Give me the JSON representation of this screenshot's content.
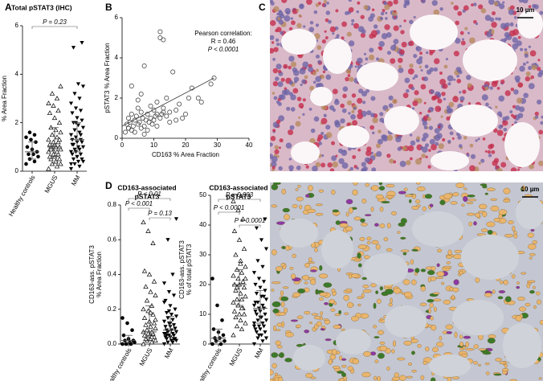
{
  "panel_labels": [
    "A",
    "B",
    "C",
    "D"
  ],
  "images": {
    "scale_bars": [
      "10 µm",
      "10 µm"
    ]
  },
  "chart_data": [
    {
      "type": "strip",
      "title": "Total pSTAT3 (IHC)",
      "ylabel": "% Area Fraction",
      "categories": [
        "Healthy controls",
        "MGUS",
        "MM"
      ],
      "ylim": [
        0,
        6
      ],
      "yticks": [
        0,
        2,
        4,
        6
      ],
      "series": [
        {
          "marker": "circle",
          "color": "#000000",
          "values": [
            0.3,
            0.4,
            0.5,
            0.6,
            0.7,
            0.7,
            0.8,
            0.9,
            1.0,
            1.2,
            1.3,
            1.4,
            1.5,
            1.6
          ],
          "median": 0.8,
          "range": [
            0.5,
            1.2
          ]
        },
        {
          "marker": "triangle-open",
          "color": "#000000",
          "values": [
            0.1,
            0.2,
            0.3,
            0.3,
            0.4,
            0.5,
            0.5,
            0.6,
            0.6,
            0.7,
            0.7,
            0.8,
            0.8,
            0.9,
            0.9,
            1.0,
            1.0,
            1.0,
            1.1,
            1.1,
            1.2,
            1.2,
            1.3,
            1.4,
            1.5,
            1.6,
            1.7,
            1.8,
            2.0,
            2.2,
            2.4,
            2.5,
            2.7,
            2.8,
            3.0,
            3.2,
            3.5,
            0.4,
            0.9,
            1.3
          ],
          "median": 1.0,
          "range": [
            0.6,
            1.8
          ]
        },
        {
          "marker": "triangle-down",
          "color": "#000000",
          "values": [
            0.1,
            0.2,
            0.3,
            0.4,
            0.4,
            0.5,
            0.5,
            0.6,
            0.7,
            0.7,
            0.8,
            0.8,
            0.9,
            0.9,
            1.0,
            1.0,
            1.1,
            1.2,
            1.2,
            1.3,
            1.3,
            1.4,
            1.5,
            1.6,
            1.7,
            1.8,
            1.9,
            2.0,
            2.1,
            2.2,
            2.4,
            2.5,
            2.6,
            2.8,
            3.0,
            3.2,
            3.5,
            3.6,
            5.1,
            5.3,
            0.6,
            1.1,
            1.5,
            2.0,
            0.3
          ],
          "median": 1.3,
          "range": [
            0.8,
            2.0
          ]
        }
      ],
      "comparisons": [
        {
          "label": "P = 0.23",
          "groups": [
            "Healthy controls",
            "MM"
          ]
        }
      ]
    },
    {
      "type": "scatter",
      "xlabel": "CD163 % Area Fraction",
      "ylabel": "pSTAT3 % Area Fraction",
      "xlim": [
        0,
        40
      ],
      "xticks": [
        0,
        10,
        20,
        30,
        40
      ],
      "ylim": [
        0,
        6
      ],
      "yticks": [
        0,
        2,
        4,
        6
      ],
      "color": "#333333",
      "x": [
        1,
        1.5,
        2,
        2,
        2.5,
        3,
        3,
        3.5,
        4,
        4,
        4.5,
        5,
        5,
        5.5,
        6,
        6,
        6.5,
        7,
        7,
        7.5,
        8,
        8,
        8.5,
        9,
        9,
        9.5,
        10,
        10,
        10.5,
        11,
        11,
        12,
        12,
        12.5,
        13,
        13,
        14,
        14,
        15,
        15,
        16,
        17,
        17,
        18,
        19,
        20,
        21,
        22,
        24,
        25,
        28,
        29,
        3,
        5,
        7,
        11,
        12,
        13,
        2,
        6
      ],
      "y": [
        0.3,
        0.7,
        0.5,
        1.0,
        0.8,
        0.4,
        1.2,
        0.6,
        0.9,
        0.3,
        1.1,
        0.7,
        1.5,
        0.8,
        0.5,
        1.3,
        1.0,
        0.6,
        3.6,
        0.9,
        1.2,
        0.4,
        0.8,
        1.6,
        1.0,
        0.7,
        1.4,
        0.9,
        1.1,
        0.6,
        1.8,
        5.3,
        1.0,
        1.2,
        4.9,
        1.5,
        1.1,
        2.0,
        1.3,
        0.8,
        3.3,
        1.4,
        0.9,
        1.7,
        1.0,
        1.2,
        2.0,
        2.5,
        2.0,
        1.8,
        2.7,
        3.0,
        2.6,
        1.9,
        0.2,
        1.2,
        5.0,
        1.3,
        0.5,
        2.2
      ],
      "trend": {
        "x": [
          0,
          29
        ],
        "y": [
          0.6,
          3.0
        ]
      },
      "annotations": [
        "Pearson correlation:",
        "R = 0.46",
        "P < 0.0001"
      ]
    },
    {
      "type": "strip",
      "title": [
        "CD163-associated",
        "pSTAT3"
      ],
      "ylabel": [
        "CD163-ass. pSTAT3",
        "% Area Fraction"
      ],
      "categories": [
        "Healthy controls",
        "MGUS",
        "MM"
      ],
      "ylim": [
        0,
        0.8
      ],
      "yticks": [
        {
          "value": 0,
          "label": "0.0"
        },
        0.2,
        0.4,
        0.6,
        0.8
      ],
      "series": [
        {
          "marker": "circle",
          "color": "#000000",
          "values": [
            0,
            0,
            0,
            0.01,
            0.01,
            0.02,
            0.02,
            0.03,
            0.05,
            0.08,
            0.12,
            0.15
          ],
          "median": 0.02,
          "range": [
            0.01,
            0.05
          ]
        },
        {
          "marker": "triangle-open",
          "color": "#000000",
          "values": [
            0,
            0.01,
            0.02,
            0.02,
            0.03,
            0.03,
            0.04,
            0.05,
            0.05,
            0.06,
            0.06,
            0.07,
            0.07,
            0.08,
            0.09,
            0.1,
            0.11,
            0.12,
            0.13,
            0.15,
            0.17,
            0.19,
            0.2,
            0.22,
            0.25,
            0.28,
            0.3,
            0.33,
            0.36,
            0.4,
            0.42,
            0.58,
            0.65,
            0.7,
            0.04,
            0.08,
            0.14,
            0.18
          ],
          "median": 0.07,
          "range": [
            0.03,
            0.22
          ]
        },
        {
          "marker": "triangle-down",
          "color": "#000000",
          "values": [
            0,
            0.01,
            0.01,
            0.02,
            0.02,
            0.03,
            0.03,
            0.04,
            0.04,
            0.05,
            0.05,
            0.06,
            0.06,
            0.07,
            0.07,
            0.08,
            0.08,
            0.09,
            0.1,
            0.1,
            0.11,
            0.12,
            0.13,
            0.14,
            0.15,
            0.16,
            0.17,
            0.18,
            0.2,
            0.22,
            0.25,
            0.28,
            0.3,
            0.35,
            0.4,
            0.6,
            0.72,
            0.02,
            0.05,
            0.09,
            0.12,
            0.06,
            0.03,
            0.19,
            0.24
          ],
          "median": 0.08,
          "range": [
            0.04,
            0.16
          ]
        }
      ],
      "comparisons": [
        {
          "label": "P < 0.01",
          "groups": [
            "Healthy controls",
            "MM"
          ]
        },
        {
          "label": "P < 0.001",
          "groups": [
            "Healthy controls",
            "MGUS"
          ]
        },
        {
          "label": "P = 0.13",
          "groups": [
            "MGUS",
            "MM"
          ]
        }
      ]
    },
    {
      "type": "strip",
      "title": [
        "CD163-associated",
        "pSTAT3"
      ],
      "ylabel": [
        "CD163-ass. pSTAT3",
        "% of total pSTAT3"
      ],
      "categories": [
        "Healthy controls",
        "MGUS",
        "MM"
      ],
      "ylim": [
        0,
        50
      ],
      "yticks": [
        0,
        10,
        20,
        30,
        40,
        50
      ],
      "series": [
        {
          "marker": "circle",
          "color": "#000000",
          "values": [
            0,
            0,
            1,
            1,
            2,
            2,
            3,
            4,
            5,
            8,
            13,
            22
          ],
          "median": 2,
          "range": [
            1,
            5
          ]
        },
        {
          "marker": "triangle-open",
          "color": "#000000",
          "values": [
            3,
            5,
            6,
            7,
            8,
            9,
            10,
            10,
            11,
            12,
            13,
            14,
            15,
            15,
            16,
            17,
            18,
            19,
            20,
            20,
            21,
            22,
            23,
            24,
            25,
            26,
            28,
            30,
            32,
            35,
            38,
            42,
            45,
            48,
            12,
            19,
            22,
            27
          ],
          "median": 20,
          "range": [
            13,
            25
          ]
        },
        {
          "marker": "triangle-down",
          "color": "#000000",
          "values": [
            0,
            1,
            2,
            2,
            3,
            4,
            4,
            5,
            5,
            6,
            6,
            7,
            7,
            8,
            8,
            9,
            10,
            10,
            11,
            11,
            12,
            12,
            13,
            13,
            14,
            15,
            16,
            17,
            18,
            19,
            20,
            21,
            22,
            24,
            26,
            28,
            32,
            35,
            39,
            42,
            9,
            14,
            16,
            3,
            6
          ],
          "median": 12,
          "range": [
            7,
            18
          ]
        }
      ],
      "comparisons": [
        {
          "label": "P = 0.003",
          "groups": [
            "Healthy controls",
            "MM"
          ]
        },
        {
          "label": "P < 0.0001",
          "groups": [
            "Healthy controls",
            "MGUS"
          ]
        },
        {
          "label": "P = 0.0001",
          "groups": [
            "MGUS",
            "MM"
          ]
        }
      ]
    }
  ]
}
